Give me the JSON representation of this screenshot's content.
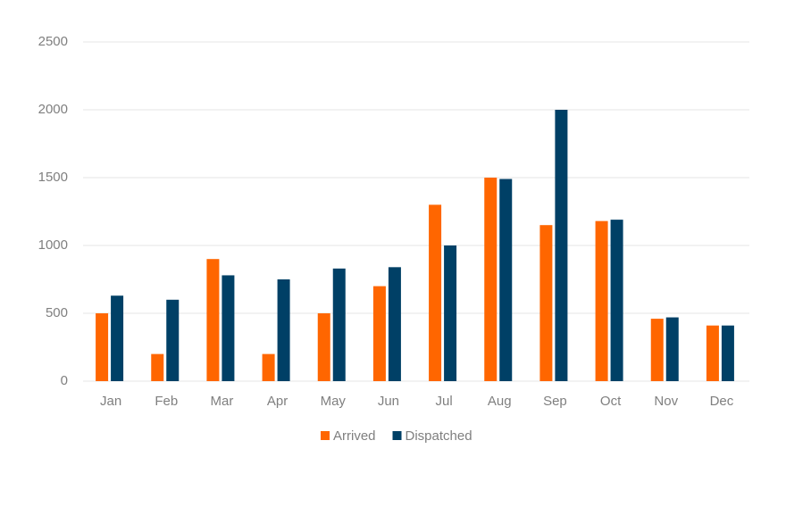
{
  "chart_data": {
    "type": "bar",
    "categories": [
      "Jan",
      "Feb",
      "Mar",
      "Apr",
      "May",
      "Jun",
      "Jul",
      "Aug",
      "Sep",
      "Oct",
      "Nov",
      "Dec"
    ],
    "series": [
      {
        "name": "Arrived",
        "color": "#ff6600",
        "values": [
          500,
          200,
          900,
          200,
          500,
          700,
          1300,
          1500,
          1150,
          1180,
          460,
          410
        ]
      },
      {
        "name": "Dispatched",
        "color": "#004066",
        "values": [
          630,
          600,
          780,
          750,
          830,
          840,
          1000,
          1490,
          2000,
          1190,
          470,
          410
        ]
      }
    ],
    "ylim": [
      0,
      2500
    ],
    "yticks": [
      0,
      500,
      1000,
      1500,
      2000,
      2500
    ],
    "grid": true,
    "legend": "bottom"
  }
}
